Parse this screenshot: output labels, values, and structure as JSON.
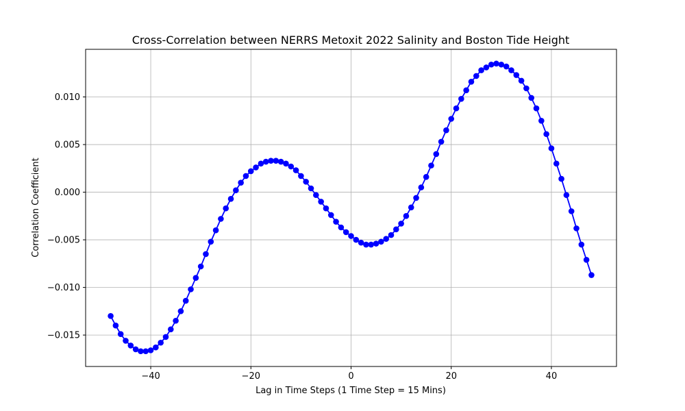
{
  "chart_data": {
    "type": "line",
    "title": "Cross-Correlation between NERRS Metoxit 2022 Salinity and Boston Tide Height",
    "xlabel": "Lag in Time Steps (1 Time Step = 15 Mins)",
    "ylabel": "Correlation Coefficient",
    "xlim": [
      -53,
      53
    ],
    "ylim": [
      -0.0183,
      0.015
    ],
    "xticks": [
      -40,
      -20,
      0,
      20,
      40
    ],
    "xtick_labels": [
      "−40",
      "−20",
      "0",
      "20",
      "40"
    ],
    "yticks": [
      -0.015,
      -0.01,
      -0.005,
      0.0,
      0.005,
      0.01
    ],
    "ytick_labels": [
      "−0.015",
      "−0.010",
      "−0.005",
      "0.000",
      "0.005",
      "0.010"
    ],
    "grid": true,
    "series": [
      {
        "color": "#0000ff",
        "marker": "circle",
        "x": [
          -48,
          -47,
          -46,
          -45,
          -44,
          -43,
          -42,
          -41,
          -40,
          -39,
          -38,
          -37,
          -36,
          -35,
          -34,
          -33,
          -32,
          -31,
          -30,
          -29,
          -28,
          -27,
          -26,
          -25,
          -24,
          -23,
          -22,
          -21,
          -20,
          -19,
          -18,
          -17,
          -16,
          -15,
          -14,
          -13,
          -12,
          -11,
          -10,
          -9,
          -8,
          -7,
          -6,
          -5,
          -4,
          -3,
          -2,
          -1,
          0,
          1,
          2,
          3,
          4,
          5,
          6,
          7,
          8,
          9,
          10,
          11,
          12,
          13,
          14,
          15,
          16,
          17,
          18,
          19,
          20,
          21,
          22,
          23,
          24,
          25,
          26,
          27,
          28,
          29,
          30,
          31,
          32,
          33,
          34,
          35,
          36,
          37,
          38,
          39,
          40,
          41,
          42,
          43,
          44,
          45,
          46,
          47,
          48
        ],
        "y": [
          -0.013,
          -0.014,
          -0.0149,
          -0.0156,
          -0.0161,
          -0.0165,
          -0.0167,
          -0.0167,
          -0.0166,
          -0.0163,
          -0.0158,
          -0.0152,
          -0.0144,
          -0.0135,
          -0.0125,
          -0.0114,
          -0.0102,
          -0.009,
          -0.0078,
          -0.0065,
          -0.0052,
          -0.004,
          -0.0028,
          -0.0017,
          -0.0007,
          0.0002,
          0.001,
          0.0017,
          0.0022,
          0.0026,
          0.003,
          0.0032,
          0.0033,
          0.0033,
          0.0032,
          0.003,
          0.0027,
          0.0023,
          0.0017,
          0.0011,
          0.0004,
          -0.0003,
          -0.001,
          -0.0017,
          -0.0024,
          -0.0031,
          -0.0037,
          -0.0042,
          -0.0046,
          -0.005,
          -0.0053,
          -0.0055,
          -0.0055,
          -0.0054,
          -0.0052,
          -0.0049,
          -0.0045,
          -0.0039,
          -0.0033,
          -0.0025,
          -0.0016,
          -0.0006,
          0.0005,
          0.0016,
          0.0028,
          0.004,
          0.0053,
          0.0065,
          0.0077,
          0.0088,
          0.0098,
          0.0107,
          0.0116,
          0.0122,
          0.0128,
          0.0131,
          0.0134,
          0.0135,
          0.0134,
          0.0132,
          0.0128,
          0.0123,
          0.0117,
          0.0109,
          0.0099,
          0.0088,
          0.0075,
          0.0061,
          0.0046,
          0.003,
          0.0014,
          -0.0003,
          -0.002,
          -0.0038,
          -0.0055,
          -0.0071,
          -0.0087
        ]
      }
    ]
  }
}
